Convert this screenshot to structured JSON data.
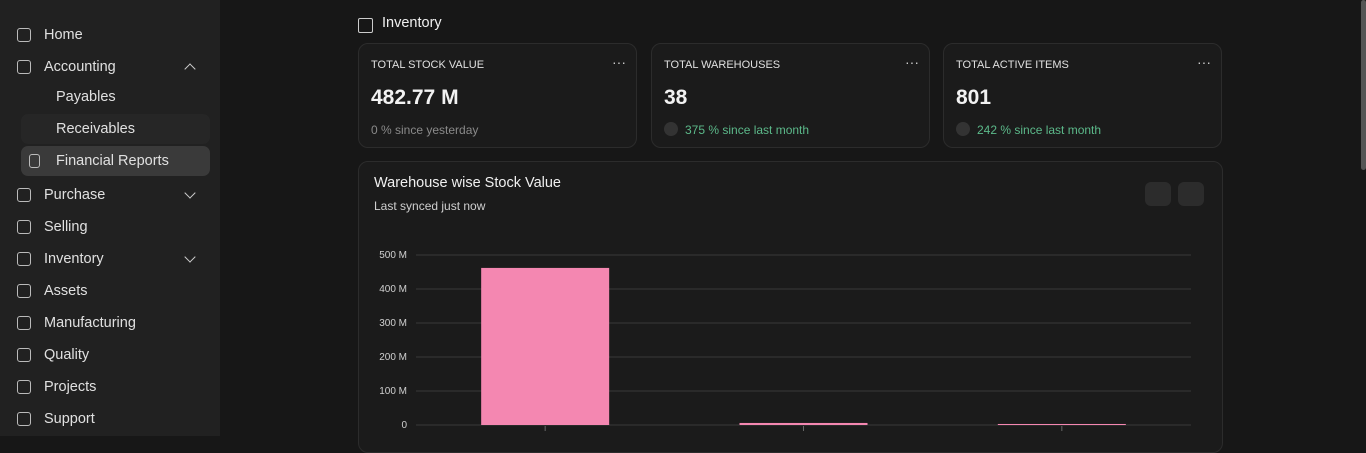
{
  "sidebar": {
    "items": [
      "Home",
      "Accounting",
      "Payables",
      "Receivables",
      "Financial Reports",
      "Purchase",
      "Selling",
      "Inventory",
      "Assets",
      "Manufacturing",
      "Quality",
      "Projects",
      "Support"
    ]
  },
  "header": {
    "title": "Inventory"
  },
  "cards": [
    {
      "label": "TOTAL STOCK VALUE",
      "value": "482.77 M",
      "note": "0 % since yesterday"
    },
    {
      "label": "TOTAL WAREHOUSES",
      "value": "38",
      "note": "375 % since last month"
    },
    {
      "label": "TOTAL ACTIVE ITEMS",
      "value": "801",
      "note": "242 % since last month"
    }
  ],
  "chart_data": {
    "type": "bar",
    "title": "Warehouse wise Stock Value",
    "subtitle": "Last synced just now",
    "categories": [
      null,
      null,
      null
    ],
    "values": [
      462,
      6,
      3
    ],
    "color": "#f487b1",
    "ylim": [
      0,
      500
    ],
    "yticks": [
      0,
      {
        "value": 100,
        "label": "100 M"
      },
      {
        "value": 200,
        "label": "200 M"
      },
      {
        "value": 300,
        "label": "300 M"
      },
      {
        "value": 400,
        "label": "400 M"
      },
      {
        "value": 500,
        "label": "500 M"
      }
    ],
    "grid": true
  }
}
